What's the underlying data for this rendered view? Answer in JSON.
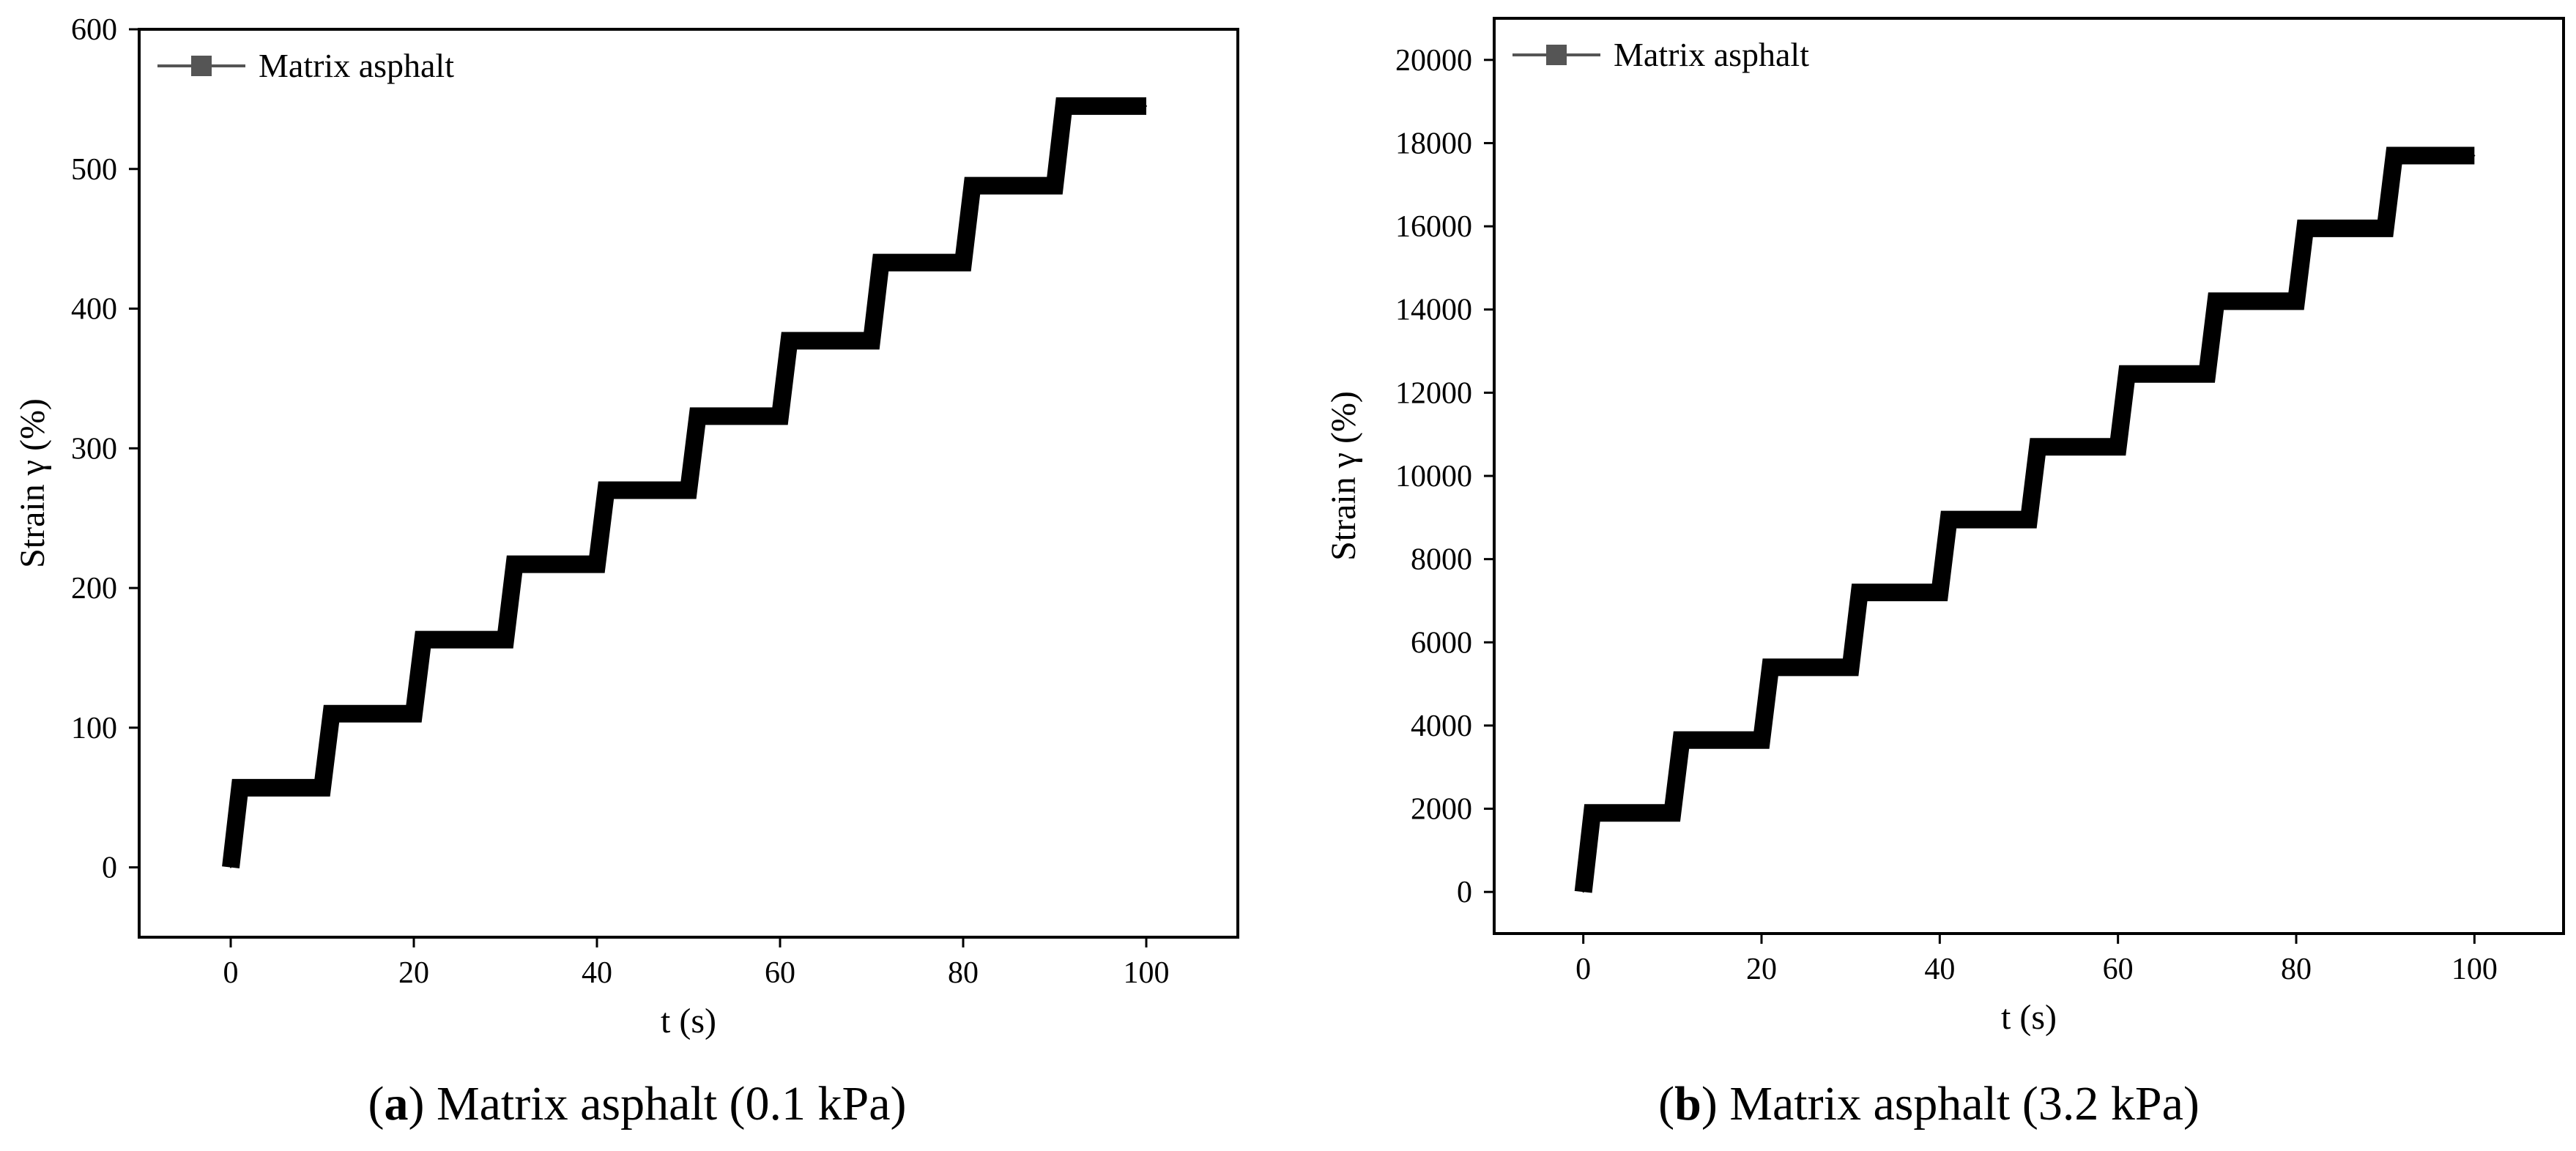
{
  "chart_data": [
    {
      "type": "line",
      "panel_letter": "a",
      "caption": "Matrix asphalt (0.1 kPa)",
      "xlabel": "t (s)",
      "ylabel": "Strain γ  (%)",
      "xlim": [
        -10,
        110
      ],
      "ylim": [
        -50,
        600
      ],
      "xticks": [
        0,
        20,
        40,
        60,
        80,
        100
      ],
      "yticks": [
        0,
        100,
        200,
        300,
        400,
        500,
        600
      ],
      "series": [
        {
          "name": "Matrix asphalt",
          "color": "#000000",
          "marker": "square",
          "x": [
            0,
            1,
            10,
            11,
            20,
            21,
            30,
            31,
            40,
            41,
            50,
            51,
            60,
            61,
            70,
            71,
            80,
            81,
            90,
            91,
            100
          ],
          "y": [
            0,
            57,
            57,
            110,
            110,
            163,
            163,
            217,
            217,
            270,
            270,
            323,
            323,
            377,
            377,
            433,
            433,
            488,
            488,
            545,
            545
          ]
        }
      ]
    },
    {
      "type": "line",
      "panel_letter": "b",
      "caption": "Matrix asphalt (3.2 kPa)",
      "xlabel": "t (s)",
      "ylabel": "Strain γ  (%)",
      "xlim": [
        -10,
        110
      ],
      "ylim": [
        -1000,
        21000
      ],
      "xticks": [
        0,
        20,
        40,
        60,
        80,
        100
      ],
      "yticks": [
        0,
        2000,
        4000,
        6000,
        8000,
        10000,
        12000,
        14000,
        16000,
        18000,
        20000
      ],
      "series": [
        {
          "name": "Matrix asphalt",
          "color": "#000000",
          "marker": "square",
          "x": [
            0,
            1,
            10,
            11,
            20,
            21,
            30,
            31,
            40,
            41,
            50,
            51,
            60,
            61,
            70,
            71,
            80,
            81,
            90,
            91,
            100
          ],
          "y": [
            0,
            1900,
            1900,
            3650,
            3650,
            5400,
            5400,
            7200,
            7200,
            8950,
            8950,
            10700,
            10700,
            12450,
            12450,
            14200,
            14200,
            15950,
            15950,
            17700,
            17700
          ]
        }
      ]
    }
  ]
}
